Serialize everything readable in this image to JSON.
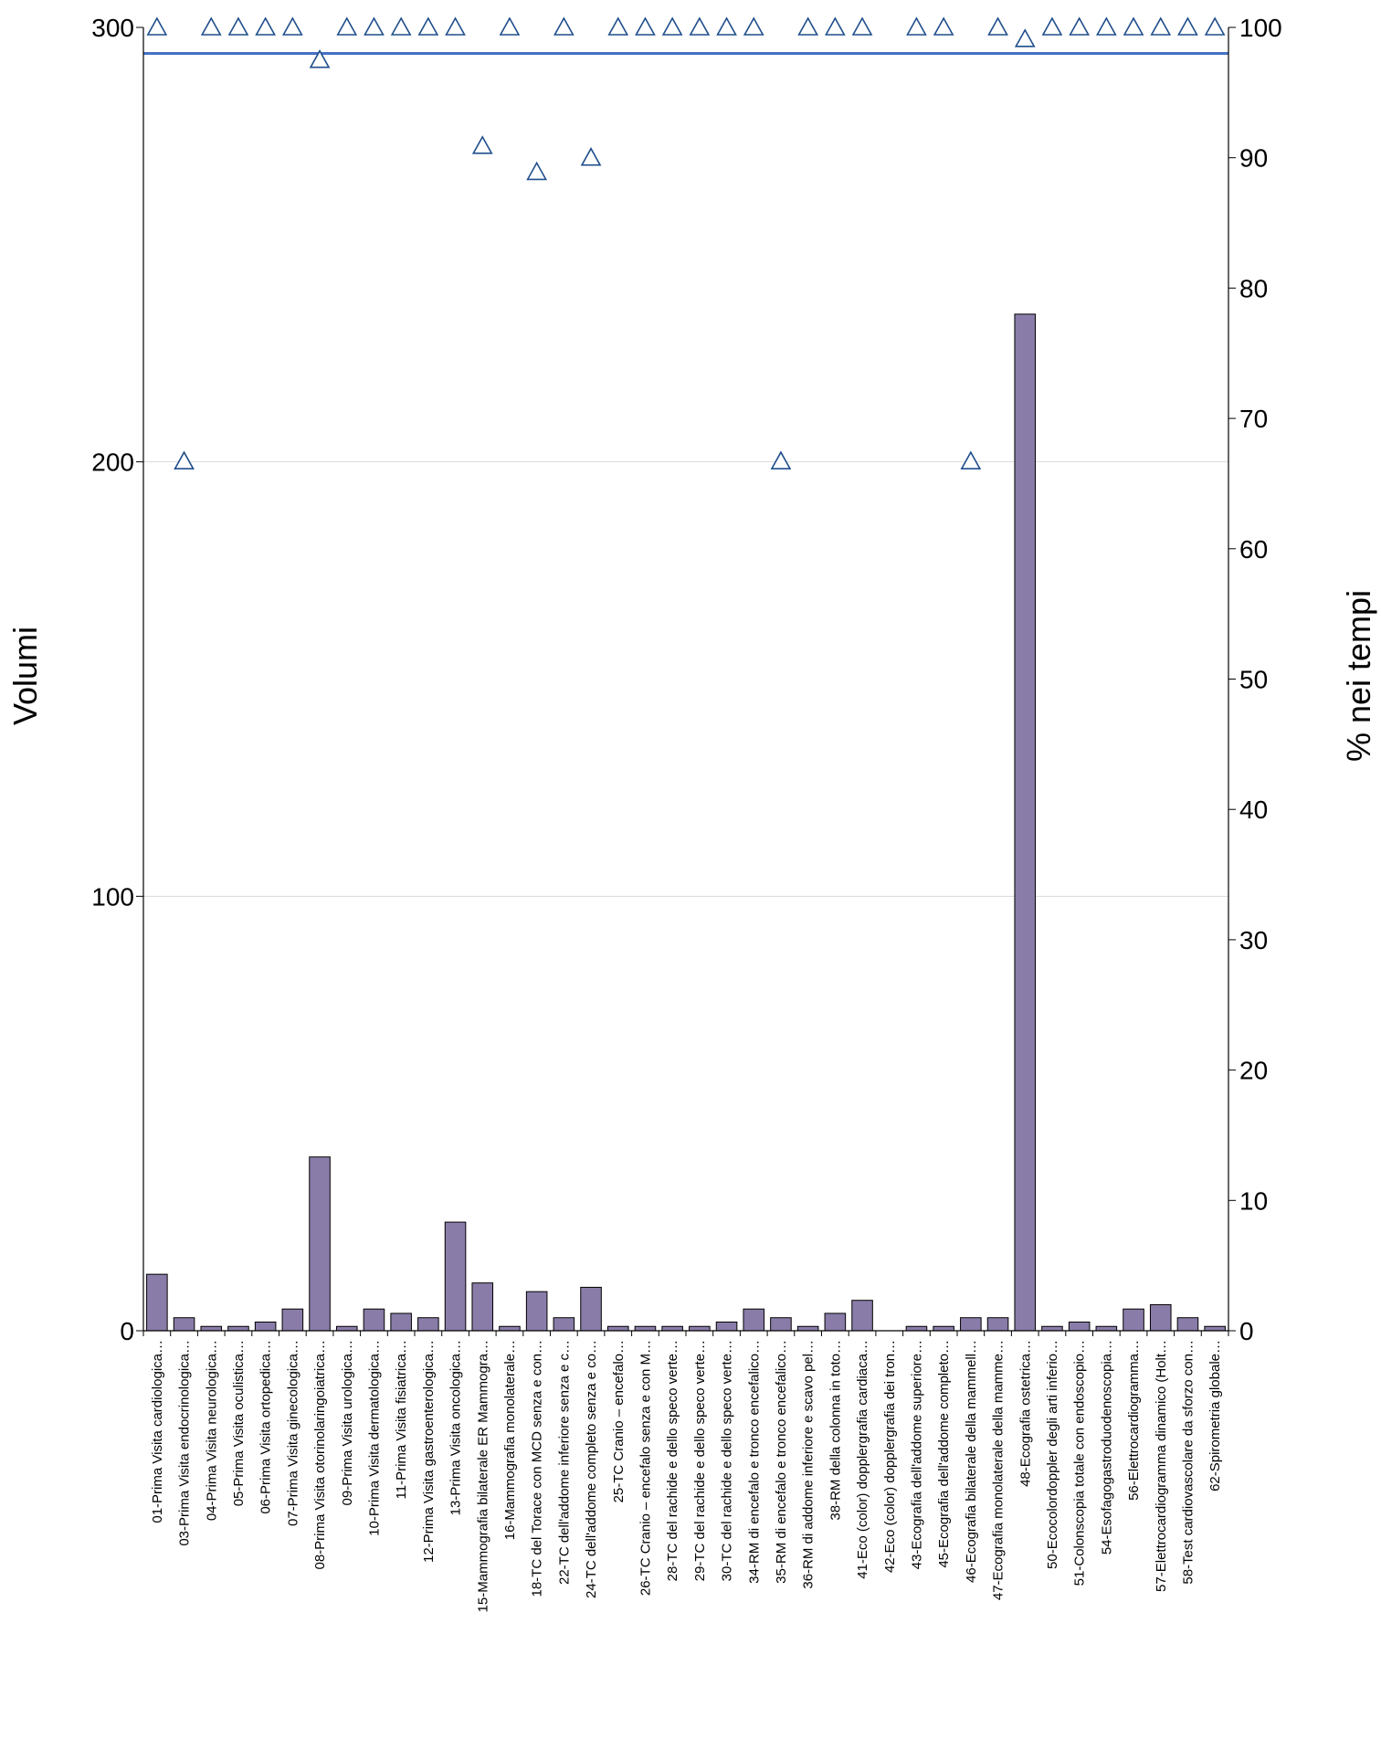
{
  "chart_data": {
    "type": "bar",
    "title": "",
    "ylabel": "Volumi",
    "y2label": "% nei tempi",
    "ylim": [
      0,
      300
    ],
    "y2lim": [
      0,
      100
    ],
    "yticks": [
      0,
      100,
      200,
      300
    ],
    "y2ticks": [
      0,
      10,
      20,
      30,
      40,
      50,
      60,
      70,
      80,
      90,
      100
    ],
    "grid": "horizontal at 100 and 200",
    "colors": {
      "bars": "#8a7ca8",
      "bar_border": "#000000",
      "markers": "#1f4e8c",
      "target_line": "#4472c4",
      "grid": "#d9d9d9"
    },
    "reference_line": {
      "axis": "right",
      "value": 98
    },
    "categories": [
      "01-Prima Visita cardiologica…",
      "03-Prima Visita endocrinologica…",
      "04-Prima Visita neurologica…",
      "05-Prima Visita oculistica…",
      "06-Prima Visita ortopedica…",
      "07-Prima Visita ginecologica…",
      "08-Prima Visita otorinolaringoiatrica…",
      "09-Prima Visita urologica…",
      "10-Prima Visita dermatologica…",
      "11-Prima Visita fisiatrica…",
      "12-Prima Visita gastroenterologica…",
      "13-Prima Visita oncologica…",
      "15-Mammografia bilaterale ER Mammogra…",
      "16-Mammografia monolaterale…",
      "18-TC del Torace con MCD senza e con…",
      "22-TC dell'addome inferiore senza e c…",
      "24-TC dell'addome completo senza e co…",
      "25-TC Cranio – encefalo…",
      "26-TC Cranio – encefalo senza e con M…",
      "28-TC del rachide e dello speco verte…",
      "29-TC del rachide e dello speco verte…",
      "30-TC del rachide e dello speco verte…",
      "34-RM di encefalo e tronco encefalico…",
      "35-RM di encefalo e tronco encefalico…",
      "36-RM di addome inferiore e scavo pel…",
      "38-RM della colonna in toto…",
      "41-Eco (color) dopplergrafia cardiaca…",
      "42-Eco (color) dopplergrafia dei tron…",
      "43-Ecografia dell'addome superiore…",
      "45-Ecografia dell'addome completo…",
      "46-Ecografia bilaterale della mammell…",
      "47-Ecografia monolaterale della mamme…",
      "48-Ecografia ostetrica…",
      "50-Ecocolordoppler degli arti inferio…",
      "51-Colonscopia totale con endoscopio…",
      "54-Esofagogastroduodenoscopia…",
      "56-Elettrocardiogramma…",
      "57-Elettrocardiogramma dinamico (Holt…",
      "58-Test cardiovascolare da sforzo con…",
      "62-Spirometria globale…"
    ],
    "series": [
      {
        "type": "bar",
        "axis": "left",
        "values": [
          13,
          3,
          1,
          1,
          2,
          5,
          40,
          1,
          5,
          4,
          3,
          25,
          11,
          1,
          9,
          3,
          10,
          1,
          1,
          1,
          1,
          2,
          5,
          3,
          1,
          4,
          7,
          0,
          1,
          1,
          3,
          3,
          234,
          1,
          2,
          1,
          5,
          6,
          3,
          1
        ]
      },
      {
        "type": "scatter",
        "marker": "triangle",
        "axis": "right",
        "values": [
          100,
          66.7,
          100,
          100,
          100,
          100,
          97.5,
          100,
          100,
          100,
          100,
          100,
          90.9,
          100,
          88.9,
          100,
          90,
          100,
          100,
          100,
          100,
          100,
          100,
          66.7,
          100,
          100,
          100,
          null,
          100,
          100,
          66.7,
          100,
          99.1,
          100,
          100,
          100,
          100,
          100,
          100,
          100
        ]
      }
    ]
  }
}
